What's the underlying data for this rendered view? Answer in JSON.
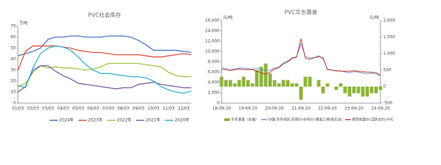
{
  "chart_data": [
    {
      "type": "line",
      "title": "PVC社会库存",
      "y_label": "万吨",
      "categories": [
        "01/03",
        null,
        "02/03",
        null,
        "03/03",
        null,
        "04/03",
        null,
        "05/03",
        null,
        "06/03",
        null,
        "07/03",
        null,
        "08/03",
        null,
        "09/03",
        null,
        "10/03",
        null,
        "11/03",
        null,
        "12/03",
        null
      ],
      "ylim": [
        0,
        70
      ],
      "yticks": [
        0,
        10,
        20,
        30,
        40,
        50,
        60,
        70
      ],
      "series": [
        {
          "name": "2024年",
          "color": "#4472c4",
          "values": [
            43,
            45,
            47,
            50,
            58,
            60,
            60,
            61,
            61,
            60,
            60,
            60,
            61,
            61,
            61,
            60,
            57,
            53,
            48,
            48,
            48,
            48,
            47,
            46
          ]
        },
        {
          "name": "2023年",
          "color": "#e04b3a",
          "values": [
            30,
            47,
            52,
            52,
            52,
            52,
            51,
            50,
            48,
            47,
            46,
            46,
            45,
            44,
            44,
            44,
            44,
            43,
            42,
            42,
            43,
            44,
            45,
            44
          ]
        },
        {
          "name": "2022年",
          "color": "#9dc33b",
          "values": [
            15,
            18,
            28,
            34,
            32,
            33,
            32,
            32,
            31,
            30,
            31,
            33,
            36,
            36,
            36,
            36,
            36,
            35,
            34,
            33,
            28,
            25,
            24,
            24
          ]
        },
        {
          "name": "2021年",
          "color": "#7a55a3",
          "values": [
            10,
            15,
            30,
            34,
            34,
            29,
            25,
            22,
            18,
            17,
            16,
            15,
            14,
            13,
            14,
            14,
            17,
            18,
            19,
            17,
            16,
            15,
            14,
            14
          ]
        },
        {
          "name": "2020年",
          "color": "#2ab0d0",
          "values": [
            16,
            14,
            32,
            45,
            50,
            52,
            51,
            48,
            42,
            35,
            30,
            27,
            27,
            26,
            25,
            24,
            24,
            23,
            20,
            15,
            12,
            10,
            9,
            11
          ]
        }
      ]
    },
    {
      "type": "combo",
      "title": "PVC华东基差",
      "y_label": "元/吨",
      "y2_label": "元/吨",
      "categories": [
        "18-09-20",
        null,
        null,
        null,
        null,
        null,
        "19-09-20",
        null,
        null,
        null,
        null,
        null,
        "20-09-20",
        null,
        null,
        null,
        null,
        null,
        "21-09-20",
        null,
        null,
        null,
        null,
        null,
        "22-09-20",
        null,
        null,
        null,
        null,
        null,
        "23-09-20",
        null,
        null,
        null,
        null,
        null,
        "24-09-20"
      ],
      "ylim": [
        0,
        16000
      ],
      "yticks": [
        0,
        {
          "value": 2000,
          "label": "2,000"
        },
        {
          "value": 4000,
          "label": "4,000"
        },
        {
          "value": 6000,
          "label": "6,000"
        },
        {
          "value": 8000,
          "label": "8,000"
        },
        {
          "value": 10000,
          "label": "10,000"
        },
        {
          "value": 12000,
          "label": "12,000"
        },
        {
          "value": 14000,
          "label": "14,000"
        },
        {
          "value": 16000,
          "label": "16,000"
        }
      ],
      "y2lim": [
        -500,
        2000
      ],
      "y2ticks": [
        -500,
        0,
        500,
        {
          "value": 1000,
          "label": "1,000"
        },
        {
          "value": 1500,
          "label": "1,500"
        },
        {
          "value": 2000,
          "label": "2,000"
        }
      ],
      "series": [
        {
          "name": "华东基差（右轴）",
          "kind": "bar",
          "axis": "y2",
          "color": "#8db43a",
          "values": [
            300,
            200,
            200,
            100,
            200,
            300,
            200,
            100,
            500,
            600,
            700,
            400,
            200,
            100,
            200,
            200,
            100,
            100,
            -400,
            300,
            300,
            0,
            200,
            -200,
            100,
            0,
            -100,
            100,
            -200,
            -300,
            -200,
            -200,
            -300,
            -300,
            -200,
            -200,
            -100
          ]
        },
        {
          "name": "中国:华东地区:市场价(中间价):聚氯乙烯(电石法)",
          "kind": "line",
          "color": "#6a8fd0",
          "values": [
            6900,
            6700,
            6500,
            6600,
            6800,
            6800,
            6700,
            6600,
            6700,
            6500,
            6300,
            6400,
            6800,
            7000,
            7800,
            8200,
            8800,
            9000,
            11500,
            9000,
            8800,
            8800,
            9200,
            8600,
            6600,
            6400,
            6200,
            6300,
            6000,
            5900,
            6100,
            6000,
            5800,
            5700,
            5800,
            5700,
            5300
          ]
        },
        {
          "name": "期货收盘价(活跃合约):PVC",
          "kind": "line",
          "color": "#c0392b",
          "values": [
            6600,
            6500,
            6300,
            6500,
            6600,
            6500,
            6500,
            6500,
            6200,
            5900,
            5600,
            6000,
            6600,
            6900,
            7600,
            8000,
            8700,
            8900,
            12500,
            8700,
            8500,
            8800,
            9000,
            8800,
            6500,
            6400,
            6300,
            6200,
            6200,
            6200,
            6300,
            6200,
            6100,
            6000,
            6000,
            5900,
            5400
          ]
        }
      ]
    }
  ]
}
